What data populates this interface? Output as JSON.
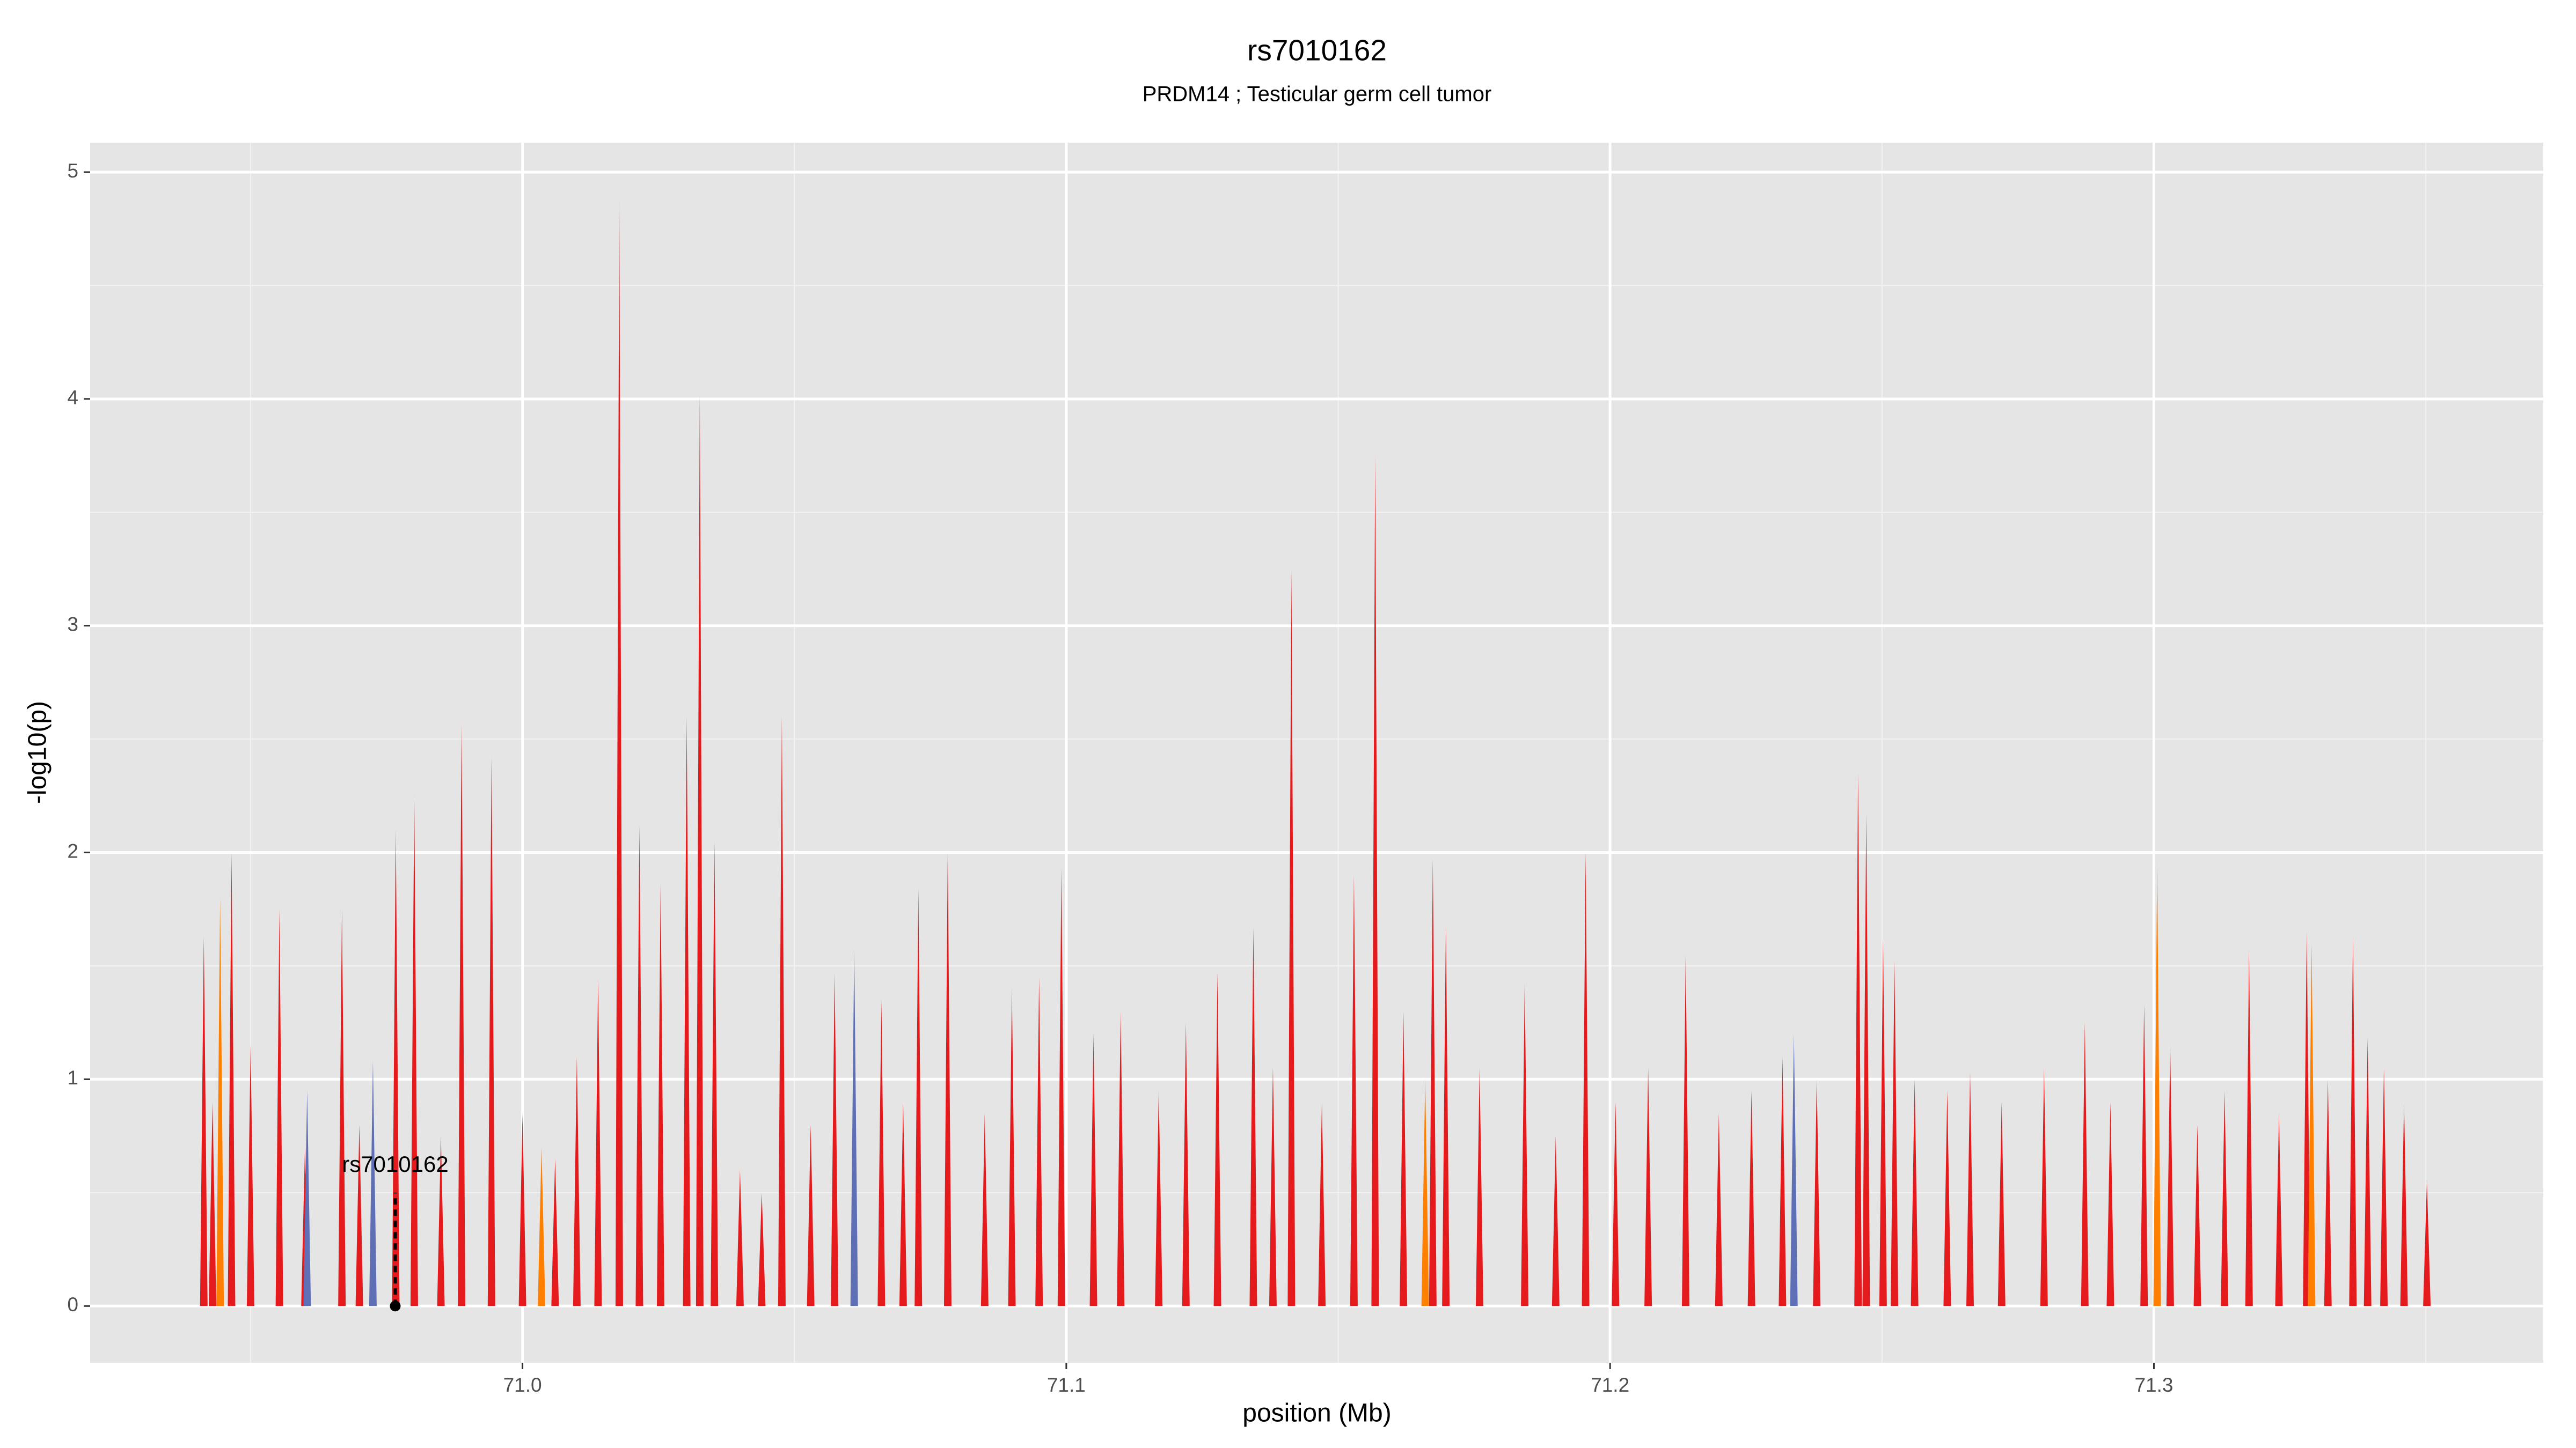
{
  "chart_data": {
    "type": "spike-area",
    "title": "rs7010162",
    "subtitle": "PRDM14 ; Testicular germ cell tumor",
    "x_label": "position (Mb)",
    "y_label": "-log10(p)",
    "xlim": [
      70.9205,
      71.3716
    ],
    "ylim": [
      -0.25,
      5.13
    ],
    "xticks": [
      {
        "value": 71,
        "label": "71.0"
      },
      71.1,
      71.2,
      71.3
    ],
    "xminorticks": [
      70.95,
      71.05,
      71.15,
      71.25,
      71.35
    ],
    "yticks": [
      0,
      1,
      2,
      3,
      4,
      5
    ],
    "yminorticks": [
      0.5,
      1.5,
      2.5,
      3.5,
      4.5
    ],
    "grid": true,
    "series": [
      {
        "color": "#e41a1c",
        "x": [
          70.9414,
          70.9465,
          70.9553,
          70.9668,
          70.9767,
          70.9801,
          70.9888,
          70.9943,
          71.0139,
          71.0178,
          71.0215,
          71.0254,
          71.0302,
          71.0326,
          71.0353,
          71.0477,
          71.0574,
          71.0728,
          71.0782,
          71.0991,
          71.1278,
          71.1344,
          71.1414,
          71.1529,
          71.1568,
          71.1674,
          71.1698,
          71.1843,
          71.1955,
          71.2139,
          71.2317,
          71.2456,
          71.2471,
          71.2502,
          71.2523,
          71.2662,
          71.2798,
          71.2873,
          71.2982,
          71.303,
          71.3175,
          71.3281,
          71.3366,
          71.3393,
          71.3423,
          71.3502,
          70.943,
          70.95,
          70.96,
          70.97,
          70.985,
          71.0,
          71.006,
          71.01,
          71.04,
          71.044,
          71.053,
          71.066,
          71.07,
          71.085,
          71.09,
          71.095,
          71.105,
          71.11,
          71.117,
          71.122,
          71.138,
          71.147,
          71.162,
          71.176,
          71.19,
          71.201,
          71.207,
          71.22,
          71.226,
          71.238,
          71.256,
          71.262,
          71.272,
          71.292,
          71.308,
          71.313,
          71.323,
          71.332,
          71.346
        ],
        "values": [
          1.63,
          2.0,
          1.75,
          1.75,
          2.1,
          2.25,
          2.57,
          2.42,
          1.44,
          4.88,
          2.12,
          1.86,
          2.6,
          4.02,
          2.05,
          2.6,
          1.47,
          1.84,
          2.0,
          1.93,
          1.47,
          1.67,
          3.25,
          1.9,
          3.75,
          1.97,
          1.68,
          1.43,
          2.0,
          1.55,
          1.1,
          2.35,
          2.17,
          1.62,
          1.52,
          1.03,
          1.05,
          1.25,
          1.33,
          1.15,
          1.57,
          1.65,
          1.63,
          1.18,
          1.05,
          0.55,
          0.9,
          1.15,
          0.7,
          0.8,
          0.75,
          0.85,
          0.65,
          1.1,
          0.6,
          0.5,
          0.8,
          1.35,
          0.9,
          0.85,
          1.4,
          1.45,
          1.2,
          1.3,
          0.95,
          1.25,
          1.05,
          0.9,
          1.3,
          1.05,
          0.75,
          0.9,
          1.05,
          0.85,
          0.95,
          1.0,
          1.0,
          0.95,
          0.9,
          0.9,
          0.8,
          0.95,
          0.85,
          1.0,
          0.9
        ]
      },
      {
        "color": "#ff7f00",
        "x": [
          70.9444,
          71.0035,
          71.166,
          71.3006,
          71.329
        ],
        "values": [
          1.8,
          0.7,
          1.0,
          1.95,
          1.6
        ]
      },
      {
        "color": "#5e6fb5",
        "x": [
          70.9604,
          70.9725,
          71.061,
          71.2338
        ],
        "values": [
          0.95,
          1.08,
          1.57,
          1.2
        ]
      }
    ],
    "annotation": {
      "label": "rs7010162",
      "x": 70.9766,
      "y": 0,
      "label_y": 0.5
    }
  }
}
